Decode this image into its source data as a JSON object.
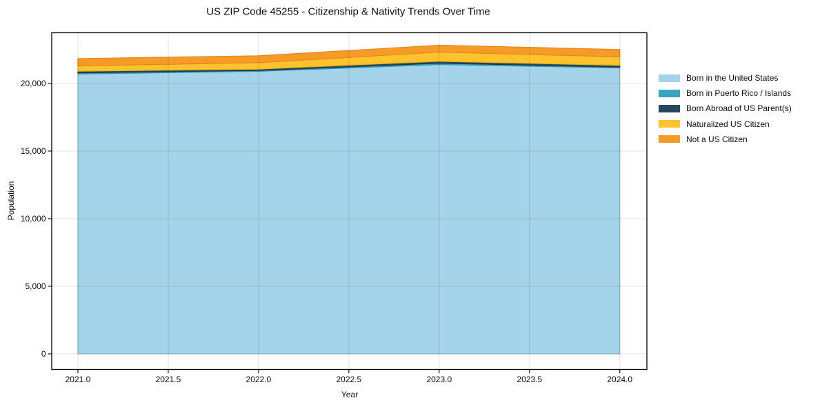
{
  "title": "US ZIP Code 45255 - Citizenship & Nativity Trends Over Time",
  "chart_data": {
    "type": "area",
    "stacked": true,
    "title": "US ZIP Code 45255 - Citizenship & Nativity Trends Over Time",
    "xlabel": "Year",
    "ylabel": "Population",
    "x": [
      2021,
      2022,
      2023,
      2024
    ],
    "series": [
      {
        "name": "Born in the United States",
        "color": "#a5d3e9",
        "edge": "#86c0dc",
        "values": [
          20700,
          20900,
          21400,
          21150
        ]
      },
      {
        "name": "Born in Puerto Rico / Islands",
        "color": "#3aa5c2",
        "edge": "#2f94af",
        "values": [
          80,
          60,
          100,
          60
        ]
      },
      {
        "name": "Born Abroad of US Parent(s)",
        "color": "#24485e",
        "edge": "#1b3a4c",
        "values": [
          130,
          100,
          140,
          130
        ]
      },
      {
        "name": "Naturalized US Citizen",
        "color": "#fdc32f",
        "edge": "#efae14",
        "values": [
          390,
          480,
          680,
          630
        ]
      },
      {
        "name": "Not a US Citizen",
        "color": "#f79b28",
        "edge": "#e68618",
        "values": [
          540,
          510,
          510,
          540
        ]
      }
    ],
    "x_tick_labels": [
      "2021.0",
      "2021.5",
      "2022.0",
      "2022.5",
      "2023.0",
      "2023.5",
      "2024.0"
    ],
    "x_tick_values": [
      2021,
      2021.5,
      2022,
      2022.5,
      2023,
      2023.5,
      2024
    ],
    "y_tick_labels": [
      "0",
      "5,000",
      "10,000",
      "15,000",
      "20,000"
    ],
    "y_tick_values": [
      0,
      5000,
      10000,
      15000,
      20000
    ],
    "xlim": [
      2020.855,
      2024.15
    ],
    "ylim": [
      -1150,
      23750
    ],
    "grid": true,
    "grid_color": "rgba(0,0,0,0.07)",
    "frame_color": "#000000",
    "legend_position": "right-outside"
  }
}
